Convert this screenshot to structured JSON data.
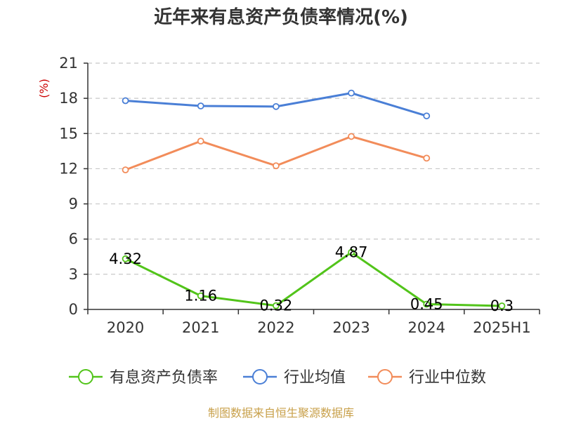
{
  "chart_data": {
    "type": "line",
    "title": "近年来有息资产负债率情况(%)",
    "ylabel": "(%)",
    "categories": [
      "2020",
      "2021",
      "2022",
      "2023",
      "2024",
      "2025H1"
    ],
    "ylim": [
      0,
      21
    ],
    "yticks": [
      0,
      3,
      6,
      9,
      12,
      15,
      18,
      21
    ],
    "grid": true,
    "legend_position": "bottom",
    "series": [
      {
        "name": "有息资产负债率",
        "color": "#52c41a",
        "values": [
          4.32,
          1.16,
          0.32,
          4.87,
          0.45,
          0.3
        ],
        "labels": [
          "4.32",
          "1.16",
          "0.32",
          "4.87",
          "0.45",
          "0.3"
        ]
      },
      {
        "name": "行业均值",
        "color": "#4a7fd6",
        "values": [
          17.8,
          17.35,
          17.3,
          18.45,
          16.5,
          null
        ]
      },
      {
        "name": "行业中位数",
        "color": "#f28c5a",
        "values": [
          11.9,
          14.35,
          12.25,
          14.75,
          12.9,
          null
        ]
      }
    ],
    "source": "制图数据来自恒生聚源数据库"
  }
}
